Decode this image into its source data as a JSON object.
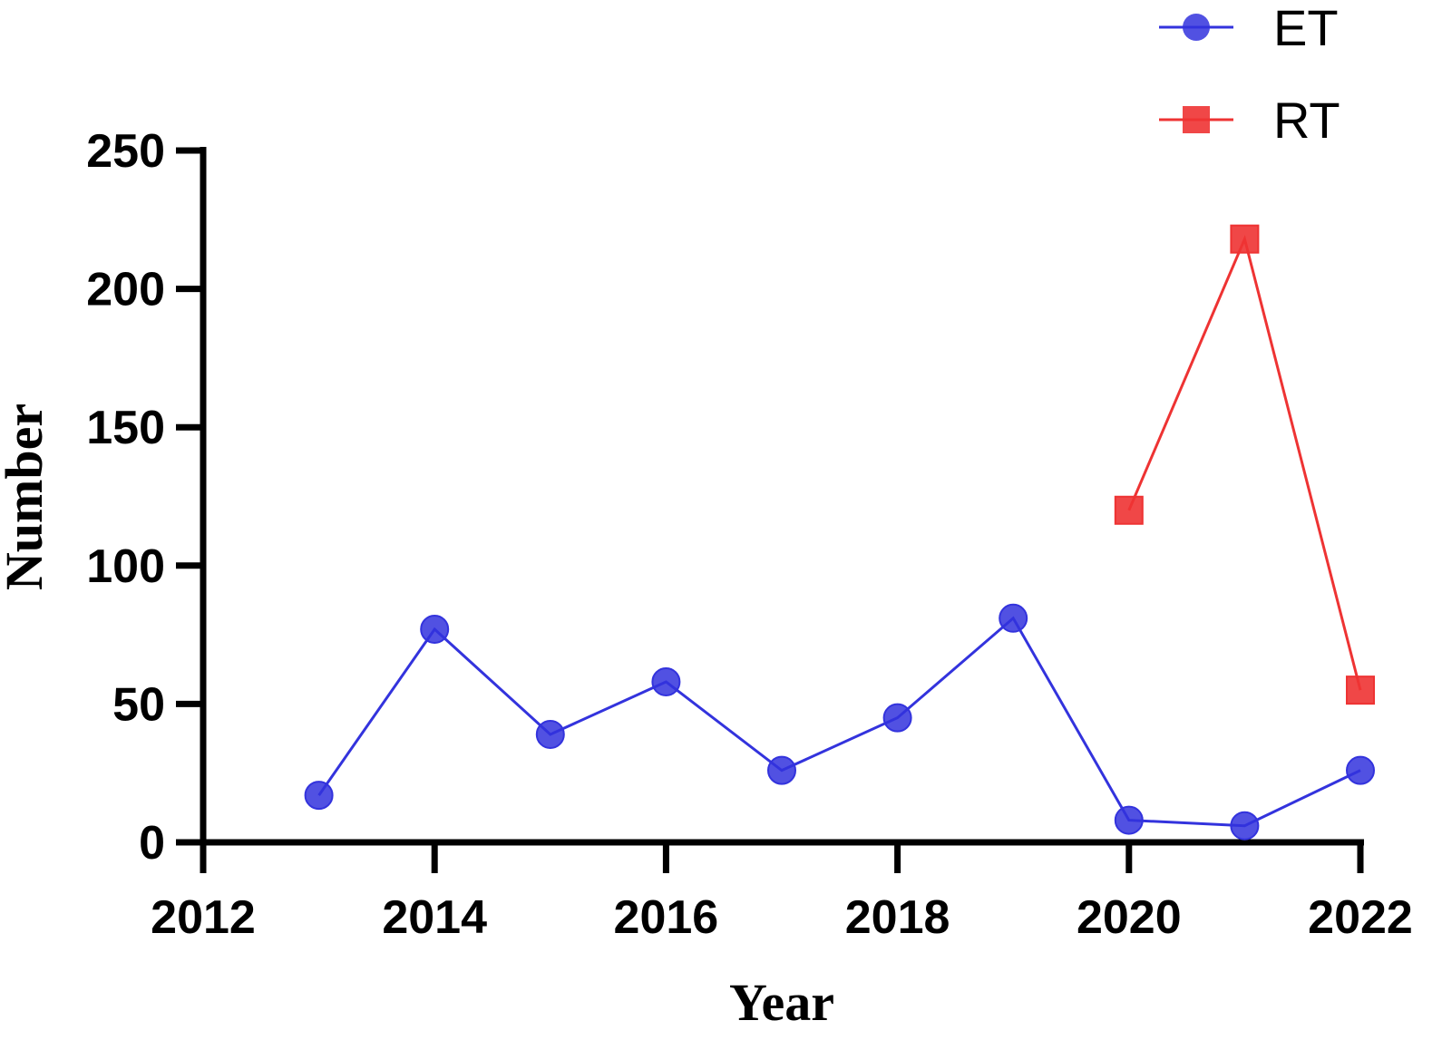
{
  "chart_data": {
    "type": "line",
    "xlabel": "Year",
    "ylabel": "Number",
    "xlim": [
      2012,
      2022
    ],
    "ylim": [
      0,
      250
    ],
    "x_ticks": [
      "2012",
      "2014",
      "2016",
      "2018",
      "2020",
      "2022"
    ],
    "y_ticks": [
      "0",
      "50",
      "100",
      "150",
      "200",
      "250"
    ],
    "grid": false,
    "legend_position": "top-right",
    "series": [
      {
        "name": "ET",
        "marker": "circle",
        "color": "#3333dd",
        "x": [
          2013,
          2014,
          2015,
          2016,
          2017,
          2018,
          2019,
          2020,
          2021,
          2022
        ],
        "y": [
          17,
          77,
          39,
          58,
          26,
          45,
          81,
          8,
          6,
          26
        ]
      },
      {
        "name": "RT",
        "marker": "square",
        "color": "#ee3333",
        "x": [
          2020,
          2021,
          2022
        ],
        "y": [
          120,
          218,
          55
        ]
      }
    ]
  }
}
